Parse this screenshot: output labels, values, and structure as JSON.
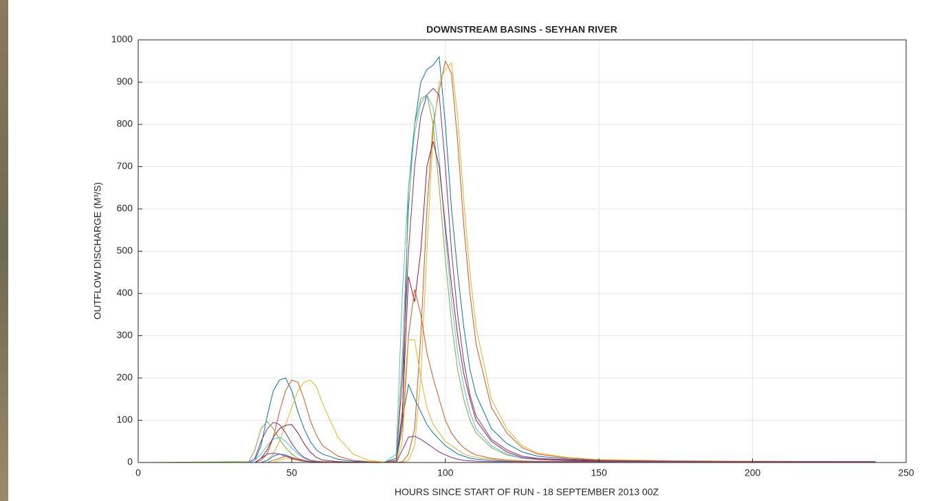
{
  "chart_data": {
    "type": "line",
    "title": "DOWNSTREAM BASINS - SEYHAN RIVER",
    "x_label": "HOURS SINCE START OF RUN - 18 SEPTEMBER 2013 00Z",
    "y_label": "OUTFLOW DISCHARGE (M³/S)",
    "xlim": [
      0,
      250
    ],
    "xticks": [
      0,
      50,
      100,
      150,
      200,
      250
    ],
    "ylim": [
      0,
      1000
    ],
    "yticks": [
      0,
      100,
      200,
      300,
      400,
      500,
      600,
      700,
      800,
      900,
      1000
    ],
    "grid": true,
    "x": [
      0,
      36,
      38,
      40,
      42,
      44,
      46,
      48,
      50,
      52,
      54,
      56,
      58,
      60,
      65,
      70,
      75,
      80,
      84,
      86,
      88,
      90,
      92,
      94,
      96,
      98,
      100,
      102,
      104,
      106,
      108,
      110,
      115,
      120,
      125,
      130,
      140,
      150,
      175,
      200,
      240
    ],
    "series": [
      {
        "color": "#0072bd",
        "values": [
          0,
          0,
          5,
          40,
          110,
          170,
          195,
          200,
          170,
          120,
          80,
          50,
          30,
          20,
          8,
          3,
          1,
          0,
          2,
          100,
          650,
          800,
          900,
          930,
          940,
          960,
          800,
          600,
          450,
          320,
          220,
          160,
          80,
          45,
          25,
          15,
          8,
          5,
          3,
          2,
          1
        ]
      },
      {
        "color": "#d95319",
        "values": [
          0,
          0,
          0,
          5,
          20,
          60,
          120,
          170,
          195,
          190,
          150,
          100,
          65,
          40,
          15,
          5,
          2,
          1,
          0,
          2,
          20,
          80,
          300,
          600,
          800,
          880,
          950,
          920,
          760,
          560,
          400,
          280,
          130,
          70,
          35,
          20,
          10,
          6,
          4,
          3,
          2
        ]
      },
      {
        "color": "#edb120",
        "values": [
          0,
          0,
          0,
          0,
          5,
          20,
          50,
          90,
          130,
          170,
          190,
          195,
          180,
          140,
          60,
          20,
          5,
          1,
          0,
          0,
          5,
          40,
          200,
          500,
          780,
          900,
          930,
          945,
          820,
          620,
          450,
          320,
          150,
          80,
          40,
          22,
          12,
          7,
          4,
          3,
          2
        ]
      },
      {
        "color": "#7e2f8e",
        "values": [
          0,
          0,
          10,
          50,
          80,
          95,
          90,
          70,
          45,
          25,
          12,
          6,
          3,
          2,
          1,
          0,
          0,
          0,
          5,
          200,
          500,
          700,
          820,
          870,
          885,
          870,
          700,
          500,
          350,
          240,
          160,
          110,
          55,
          30,
          15,
          10,
          6,
          4,
          3,
          2,
          1
        ]
      },
      {
        "color": "#77ac30",
        "values": [
          0,
          2,
          30,
          80,
          97,
          80,
          55,
          35,
          20,
          10,
          5,
          3,
          1,
          1,
          0,
          0,
          0,
          0,
          10,
          250,
          600,
          800,
          860,
          870,
          800,
          650,
          480,
          330,
          220,
          150,
          100,
          70,
          35,
          18,
          10,
          7,
          5,
          3,
          2,
          2,
          1
        ]
      },
      {
        "color": "#4dbeee",
        "values": [
          0,
          0,
          5,
          20,
          40,
          55,
          60,
          50,
          35,
          20,
          10,
          5,
          2,
          1,
          0,
          0,
          0,
          0,
          20,
          400,
          650,
          780,
          850,
          870,
          840,
          720,
          540,
          380,
          260,
          180,
          120,
          80,
          40,
          20,
          10,
          7,
          5,
          3,
          2,
          2,
          1
        ]
      },
      {
        "color": "#a2142f",
        "values": [
          0,
          0,
          0,
          10,
          30,
          60,
          80,
          88,
          90,
          70,
          45,
          25,
          12,
          6,
          2,
          1,
          0,
          0,
          5,
          120,
          440,
          380,
          500,
          700,
          760,
          700,
          560,
          420,
          300,
          210,
          150,
          100,
          50,
          25,
          12,
          8,
          5,
          3,
          2,
          2,
          1
        ]
      },
      {
        "color": "#0072bd",
        "values": [
          0,
          0,
          0,
          0,
          5,
          15,
          20,
          18,
          12,
          8,
          4,
          2,
          1,
          0,
          0,
          0,
          0,
          0,
          10,
          100,
          185,
          150,
          120,
          90,
          70,
          55,
          40,
          30,
          20,
          15,
          10,
          8,
          5,
          3,
          2,
          2,
          2,
          2,
          2,
          2,
          2
        ]
      },
      {
        "color": "#d95319",
        "values": [
          0,
          0,
          0,
          0,
          0,
          5,
          10,
          15,
          12,
          8,
          5,
          3,
          2,
          1,
          0,
          0,
          0,
          0,
          5,
          80,
          300,
          410,
          350,
          260,
          200,
          150,
          100,
          70,
          50,
          35,
          25,
          18,
          10,
          6,
          4,
          3,
          3,
          2,
          2,
          2,
          2
        ]
      },
      {
        "color": "#edb120",
        "values": [
          0,
          0,
          0,
          0,
          0,
          0,
          5,
          10,
          8,
          5,
          3,
          2,
          1,
          0,
          0,
          0,
          0,
          0,
          0,
          50,
          290,
          290,
          200,
          130,
          90,
          70,
          50,
          40,
          30,
          20,
          15,
          12,
          8,
          5,
          3,
          3,
          2,
          2,
          2,
          2,
          2
        ]
      },
      {
        "color": "#7e2f8e",
        "values": [
          0,
          0,
          0,
          10,
          20,
          22,
          20,
          15,
          10,
          6,
          3,
          2,
          1,
          0,
          0,
          0,
          0,
          0,
          0,
          30,
          60,
          62,
          55,
          45,
          35,
          25,
          18,
          12,
          8,
          5,
          4,
          3,
          2,
          2,
          2,
          2,
          2,
          2,
          2,
          2,
          2
        ]
      }
    ]
  }
}
